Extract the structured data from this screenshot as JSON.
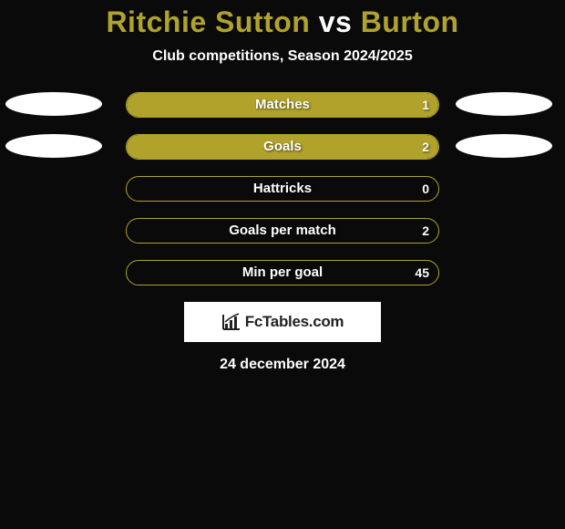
{
  "colors": {
    "accent": "#b0a22a",
    "background": "#0a0a0a",
    "ellipse": "#ffffff",
    "brand_bg": "#ffffff",
    "brand_text": "#222222",
    "text": "#ffffff"
  },
  "header": {
    "player": "Ritchie Sutton",
    "vs": "vs",
    "opponent": "Burton",
    "subtitle": "Club competitions, Season 2024/2025"
  },
  "stats": [
    {
      "label": "Matches",
      "value": "1",
      "fill_pct": 100,
      "show_left_ellipse": true,
      "show_right_ellipse": true
    },
    {
      "label": "Goals",
      "value": "2",
      "fill_pct": 100,
      "show_left_ellipse": true,
      "show_right_ellipse": true
    },
    {
      "label": "Hattricks",
      "value": "0",
      "fill_pct": 0,
      "show_left_ellipse": false,
      "show_right_ellipse": false
    },
    {
      "label": "Goals per match",
      "value": "2",
      "fill_pct": 0,
      "show_left_ellipse": false,
      "show_right_ellipse": false
    },
    {
      "label": "Min per goal",
      "value": "45",
      "fill_pct": 0,
      "show_left_ellipse": false,
      "show_right_ellipse": false
    }
  ],
  "brand": "FcTables.com",
  "date": "24 december 2024"
}
